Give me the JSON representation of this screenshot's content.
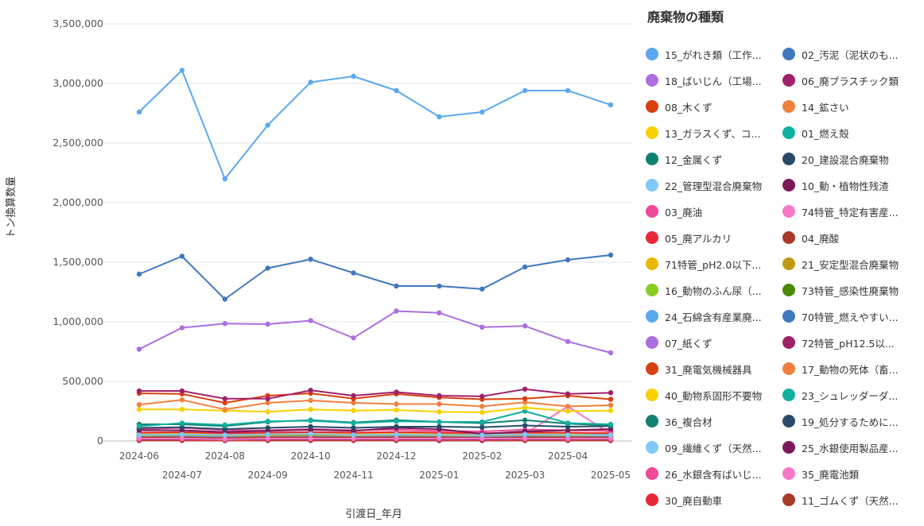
{
  "chart_data": {
    "type": "line",
    "title": "",
    "xlabel": "引渡日_年月",
    "ylabel": "トン換算数量",
    "legend_title": "廃棄物の種類",
    "legend_position": "right",
    "grid": true,
    "ylim": [
      0,
      3500000
    ],
    "yticks": [
      "0",
      "500,000",
      "1,000,000",
      "1,500,000",
      "2,000,000",
      "2,500,000",
      "3,000,000",
      "3,500,000"
    ],
    "ytick_values": [
      0,
      500000,
      1000000,
      1500000,
      2000000,
      2500000,
      3000000,
      3500000
    ],
    "x": [
      "2024-06",
      "2024-07",
      "2024-08",
      "2024-09",
      "2024-10",
      "2024-11",
      "2024-12",
      "2025-01",
      "2025-02",
      "2025-03",
      "2025-04",
      "2025-05"
    ],
    "series": [
      {
        "name": "15_がれき類（工作...",
        "color": "#5aa8f0",
        "values": [
          2760000,
          3110000,
          2200000,
          2650000,
          3010000,
          3060000,
          2940000,
          2720000,
          2760000,
          2940000,
          2940000,
          2820000
        ]
      },
      {
        "name": "02_汚泥（泥状のも...",
        "color": "#4078c0",
        "values": [
          1400000,
          1550000,
          1190000,
          1450000,
          1525000,
          1410000,
          1300000,
          1300000,
          1275000,
          1460000,
          1520000,
          1560000
        ]
      },
      {
        "name": "18_ばいじん（工場...",
        "color": "#ac6ee0",
        "values": [
          770000,
          950000,
          985000,
          980000,
          1010000,
          865000,
          1090000,
          1075000,
          955000,
          965000,
          835000,
          740000
        ]
      },
      {
        "name": "06_廃プラスチック類",
        "color": "#a0206a",
        "values": [
          420000,
          420000,
          355000,
          355000,
          425000,
          380000,
          410000,
          380000,
          375000,
          435000,
          395000,
          405000
        ]
      },
      {
        "name": "08_木くず",
        "color": "#d84010",
        "values": [
          400000,
          395000,
          320000,
          380000,
          400000,
          355000,
          395000,
          365000,
          350000,
          355000,
          380000,
          350000
        ]
      },
      {
        "name": "14_鉱さい",
        "color": "#f08040",
        "values": [
          305000,
          345000,
          265000,
          320000,
          340000,
          320000,
          310000,
          310000,
          290000,
          325000,
          290000,
          300000
        ]
      },
      {
        "name": "13_ガラスくず、コ...",
        "color": "#f8d000",
        "values": [
          265000,
          265000,
          255000,
          245000,
          265000,
          255000,
          260000,
          245000,
          240000,
          280000,
          250000,
          255000
        ]
      },
      {
        "name": "01_燃え殻",
        "color": "#10b0a0",
        "values": [
          125000,
          150000,
          135000,
          165000,
          170000,
          150000,
          165000,
          160000,
          160000,
          250000,
          150000,
          140000
        ]
      },
      {
        "name": "12_金属くず",
        "color": "#108070",
        "values": [
          140000,
          140000,
          125000,
          160000,
          175000,
          155000,
          175000,
          160000,
          150000,
          175000,
          145000,
          130000
        ]
      },
      {
        "name": "20_建設混合廃棄物",
        "color": "#284a68",
        "values": [
          110000,
          115000,
          100000,
          110000,
          120000,
          110000,
          120000,
          120000,
          115000,
          130000,
          120000,
          125000
        ]
      },
      {
        "name": "22_管理型混合廃棄物",
        "color": "#80c8f8",
        "values": [
          50000,
          55000,
          50000,
          55000,
          60000,
          50000,
          55000,
          50000,
          50000,
          55000,
          50000,
          50000
        ]
      },
      {
        "name": "10_動・植物性残渣",
        "color": "#7a1a5a",
        "values": [
          90000,
          90000,
          75000,
          85000,
          95000,
          85000,
          110000,
          100000,
          60000,
          80000,
          90000,
          100000
        ]
      },
      {
        "name": "03_廃油",
        "color": "#f04898",
        "values": [
          100000,
          110000,
          90000,
          90000,
          100000,
          90000,
          95000,
          85000,
          80000,
          95000,
          90000,
          85000
        ]
      },
      {
        "name": "74特管_特定有害産...",
        "color": "#f878c8",
        "values": [
          20000,
          20000,
          15000,
          20000,
          20000,
          20000,
          20000,
          20000,
          20000,
          20000,
          20000,
          20000
        ]
      },
      {
        "name": "05_廃アルカリ",
        "color": "#e82838",
        "values": [
          70000,
          75000,
          65000,
          70000,
          75000,
          70000,
          75000,
          70000,
          65000,
          70000,
          70000,
          65000
        ]
      },
      {
        "name": "04_廃酸",
        "color": "#a83a28",
        "values": [
          30000,
          30000,
          25000,
          30000,
          30000,
          30000,
          30000,
          30000,
          25000,
          30000,
          30000,
          30000
        ]
      },
      {
        "name": "71特管_pH2.0以下...",
        "color": "#e8b800",
        "values": [
          65000,
          70000,
          60000,
          65000,
          70000,
          60000,
          65000,
          60000,
          60000,
          65000,
          60000,
          70000
        ]
      },
      {
        "name": "21_安定型混合廃棄物",
        "color": "#c09a10",
        "values": [
          45000,
          50000,
          45000,
          45000,
          50000,
          45000,
          50000,
          45000,
          45000,
          50000,
          45000,
          50000
        ]
      },
      {
        "name": "16_動物のふん尿（...",
        "color": "#88cc20",
        "values": [
          55000,
          55000,
          50000,
          55000,
          55000,
          55000,
          55000,
          50000,
          50000,
          55000,
          55000,
          55000
        ]
      },
      {
        "name": "73特管_感染性廃棄物",
        "color": "#4a8a08",
        "values": [
          60000,
          60000,
          55000,
          60000,
          60000,
          60000,
          60000,
          55000,
          55000,
          60000,
          60000,
          60000
        ]
      },
      {
        "name": "24_石綿含有産業廃...",
        "color": "#5aa8f0",
        "values": [
          35000,
          40000,
          30000,
          35000,
          40000,
          35000,
          40000,
          35000,
          30000,
          35000,
          35000,
          40000
        ]
      },
      {
        "name": "70特管_燃えやすい...",
        "color": "#4078c0",
        "values": [
          25000,
          25000,
          20000,
          25000,
          25000,
          25000,
          25000,
          20000,
          20000,
          25000,
          25000,
          25000
        ]
      },
      {
        "name": "07_紙くず",
        "color": "#ac6ee0",
        "values": [
          40000,
          45000,
          35000,
          40000,
          45000,
          40000,
          45000,
          40000,
          35000,
          45000,
          40000,
          40000
        ]
      },
      {
        "name": "72特管_pH12.5以...",
        "color": "#a0206a",
        "values": [
          15000,
          15000,
          12000,
          15000,
          15000,
          15000,
          15000,
          12000,
          12000,
          15000,
          15000,
          15000
        ]
      },
      {
        "name": "31_廃電気機械器具",
        "color": "#d84010",
        "values": [
          10000,
          10000,
          8000,
          10000,
          10000,
          10000,
          10000,
          8000,
          8000,
          10000,
          10000,
          10000
        ]
      },
      {
        "name": "17_動物の死体（畜...",
        "color": "#f08040",
        "values": [
          8000,
          8000,
          7000,
          8000,
          8000,
          8000,
          8000,
          7000,
          7000,
          8000,
          8000,
          8000
        ]
      },
      {
        "name": "40_動物系固形不要物",
        "color": "#f8d000",
        "values": [
          12000,
          12000,
          10000,
          12000,
          12000,
          12000,
          12000,
          10000,
          10000,
          12000,
          12000,
          12000
        ]
      },
      {
        "name": "23_シュレッダーダ...",
        "color": "#10b0a0",
        "values": [
          30000,
          30000,
          28000,
          30000,
          32000,
          30000,
          30000,
          28000,
          28000,
          30000,
          30000,
          30000
        ]
      },
      {
        "name": "36_複合材",
        "color": "#108070",
        "values": [
          18000,
          18000,
          16000,
          18000,
          18000,
          18000,
          18000,
          16000,
          16000,
          18000,
          18000,
          18000
        ]
      },
      {
        "name": "19_処分するために...",
        "color": "#284a68",
        "values": [
          22000,
          22000,
          20000,
          22000,
          22000,
          22000,
          22000,
          20000,
          20000,
          22000,
          22000,
          22000
        ]
      },
      {
        "name": "09_繊維くず（天然...",
        "color": "#80c8f8",
        "values": [
          14000,
          14000,
          12000,
          14000,
          14000,
          14000,
          14000,
          12000,
          12000,
          14000,
          14000,
          14000
        ]
      },
      {
        "name": "25_水銀使用製品産...",
        "color": "#7a1a5a",
        "values": [
          5000,
          5000,
          4000,
          5000,
          5000,
          5000,
          5000,
          4000,
          4000,
          5000,
          5000,
          5000
        ]
      },
      {
        "name": "26_水銀含有ばいじ...",
        "color": "#f04898",
        "values": [
          3000,
          3000,
          3000,
          3000,
          3000,
          3000,
          3000,
          3000,
          3000,
          3000,
          3000,
          3000
        ]
      },
      {
        "name": "35_廃電池類",
        "color": "#f878c8",
        "values": [
          60000,
          60000,
          55000,
          60000,
          60000,
          60000,
          60000,
          55000,
          55000,
          60000,
          290000,
          60000
        ]
      },
      {
        "name": "30_廃自動車",
        "color": "#e82838",
        "values": [
          45000,
          45000,
          40000,
          45000,
          45000,
          45000,
          45000,
          40000,
          40000,
          45000,
          45000,
          45000
        ]
      },
      {
        "name": "11_ゴムくず（天然...",
        "color": "#a83a28",
        "values": [
          6000,
          6000,
          5000,
          6000,
          6000,
          6000,
          6000,
          5000,
          5000,
          6000,
          6000,
          6000
        ]
      }
    ]
  }
}
